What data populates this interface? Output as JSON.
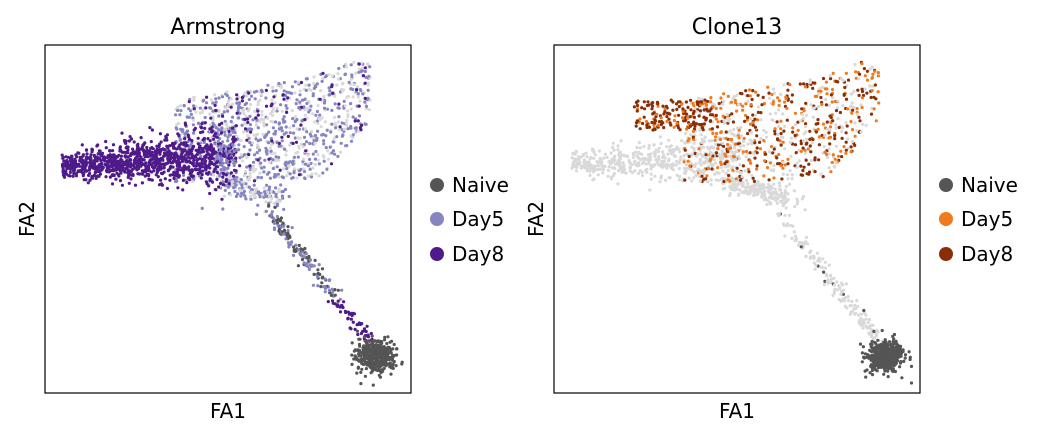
{
  "chart_data": [
    {
      "type": "scatter",
      "title": "Armstrong",
      "xlabel": "FA1",
      "ylabel": "FA2",
      "xlim": [
        0,
        100
      ],
      "ylim": [
        0,
        100
      ],
      "grid": false,
      "ticks": false,
      "background_point_color": "#d9d9d9",
      "legend_position": "right",
      "series": [
        {
          "name": "Naive",
          "color": "#555555"
        },
        {
          "name": "Day5",
          "color": "#8585c2"
        },
        {
          "name": "Day8",
          "color": "#4f1a8a"
        }
      ]
    },
    {
      "type": "scatter",
      "title": "Clone13",
      "xlabel": "FA1",
      "ylabel": "FA2",
      "xlim": [
        0,
        100
      ],
      "ylim": [
        0,
        100
      ],
      "grid": false,
      "ticks": false,
      "background_point_color": "#d9d9d9",
      "legend_position": "right",
      "series": [
        {
          "name": "Naive",
          "color": "#555555"
        },
        {
          "name": "Day5",
          "color": "#ef7b1e"
        },
        {
          "name": "Day8",
          "color": "#8a2e07"
        }
      ]
    }
  ]
}
